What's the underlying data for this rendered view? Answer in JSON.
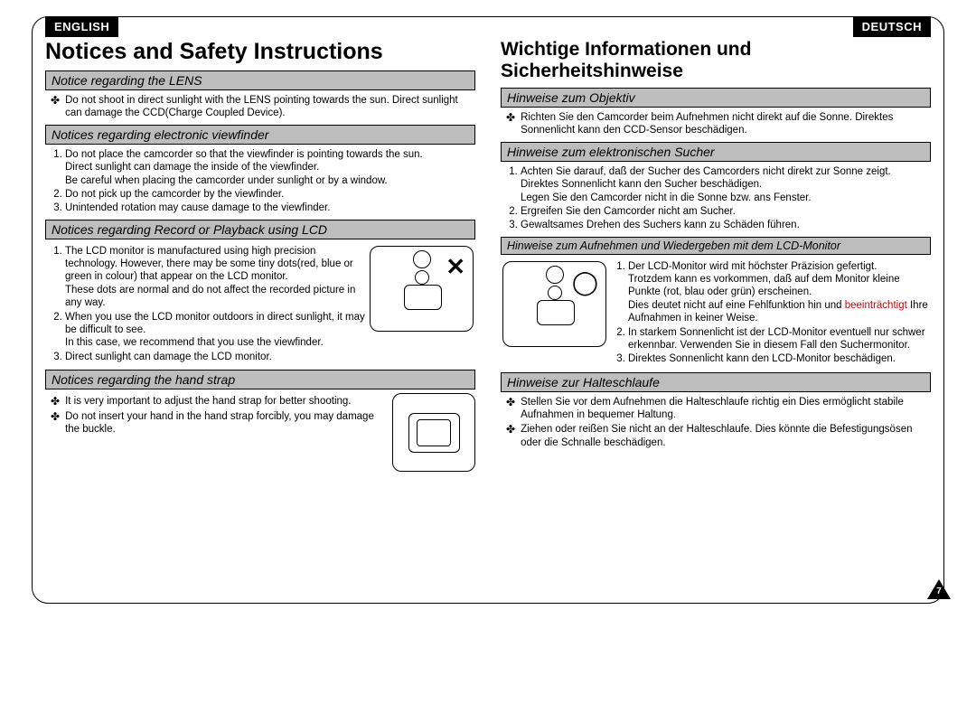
{
  "left": {
    "lang": "ENGLISH",
    "title": "Notices and Safety Instructions",
    "s1_title": "Notice regarding the LENS",
    "s1_b1": "Do not shoot in direct sunlight with the LENS pointing towards the sun. Direct sunlight can damage the CCD(Charge Coupled Device).",
    "s2_title": "Notices regarding electronic viewfinder",
    "s2_1": "Do not place the camcorder so that the viewfinder is pointing towards the sun.",
    "s2_1b": "Direct sunlight can damage the inside of the viewfinder.",
    "s2_1c": "Be careful when placing the camcorder under sunlight or by a window.",
    "s2_2": "Do not pick up the camcorder by the viewfinder.",
    "s2_3": "Unintended rotation may cause damage to the viewfinder.",
    "s3_title": "Notices regarding Record or Playback using LCD",
    "s3_1": "The LCD monitor is manufactured using high precision technology. However, there may be some tiny dots(red, blue or green in colour) that appear on the LCD monitor.",
    "s3_1b": "These dots are normal and do not affect the recorded picture in any way.",
    "s3_2": "When you use the LCD monitor outdoors in direct sunlight, it may be difficult to see.",
    "s3_2b": "In this case, we recommend that you use the viewfinder.",
    "s3_3": "Direct sunlight can damage the LCD monitor.",
    "s4_title": "Notices regarding the hand strap",
    "s4_b1": "It is very important to adjust the hand strap for better shooting.",
    "s4_b2": "Do not insert your hand in the hand strap forcibly, you may damage the buckle."
  },
  "right": {
    "lang": "DEUTSCH",
    "title": "Wichtige Informationen und Sicherheitshinweise",
    "s1_title": "Hinweise zum Objektiv",
    "s1_b1": "Richten Sie den Camcorder beim Aufnehmen nicht direkt auf die Sonne. Direktes Sonnenlicht kann den CCD-Sensor beschädigen.",
    "s2_title": "Hinweise zum elektronischen Sucher",
    "s2_1": "Achten Sie darauf, daß der Sucher des Camcorders nicht direkt zur Sonne zeigt.",
    "s2_1b": "Direktes Sonnenlicht kann den Sucher beschädigen.",
    "s2_1c": "Legen Sie den Camcorder nicht in die Sonne bzw. ans Fenster.",
    "s2_2": "Ergreifen Sie den Camcorder nicht am Sucher.",
    "s2_3": "Gewaltsames Drehen des Suchers kann zu Schäden führen.",
    "s3_title": "Hinweise zum Aufnehmen und Wiedergeben mit dem LCD-Monitor",
    "s3_1": "Der LCD-Monitor wird mit höchster Präzision gefertigt.",
    "s3_1a": "Trotzdem kann es vorkommen, daß auf dem Monitor kleine Punkte (rot, blau oder grün) erscheinen.",
    "s3_1b": "Dies deutet nicht auf eine Fehlfunktion hin und ",
    "s3_1c": "beeinträchtigt",
    "s3_1d": " Ihre Aufnahmen in keiner Weise.",
    "s3_2": "In starkem Sonnenlicht ist der LCD-Monitor eventuell nur schwer erkennbar. Verwenden Sie in diesem Fall den Suchermonitor.",
    "s3_3": "Direktes Sonnenlicht kann den LCD-Monitor beschädigen.",
    "s4_title": "Hinweise zur Halteschlaufe",
    "s4_b1": "Stellen Sie vor dem Aufnehmen die Halteschlaufe richtig ein Dies ermöglicht stabile Aufnahmen in bequemer Haltung.",
    "s4_b2": "Ziehen oder reißen Sie nicht an der Halteschlaufe. Dies könnte die Befestigungsösen oder die Schnalle beschädigen."
  },
  "page_number": "7"
}
